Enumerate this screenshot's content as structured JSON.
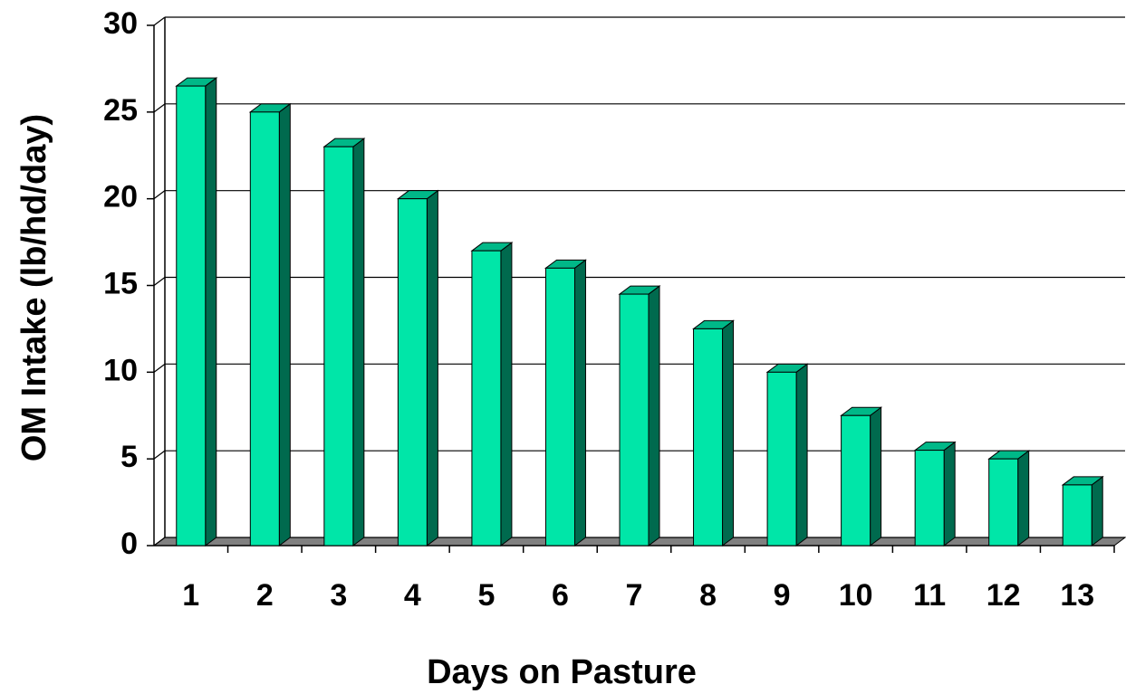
{
  "chart_data": {
    "type": "bar3d",
    "x_label": "Days on Pasture",
    "y_label": "OM Intake (lb/hd/day)",
    "categories": [
      "1",
      "2",
      "3",
      "4",
      "5",
      "6",
      "7",
      "8",
      "9",
      "10",
      "11",
      "12",
      "13"
    ],
    "values": [
      26.5,
      25,
      23,
      20,
      17,
      16,
      14.5,
      12.5,
      10,
      7.5,
      5.5,
      5,
      3.5
    ],
    "color": "#00e6a8",
    "ylim": [
      0,
      30
    ],
    "yticks": [
      0,
      5,
      10,
      15,
      20,
      25,
      30
    ],
    "grid": true
  }
}
